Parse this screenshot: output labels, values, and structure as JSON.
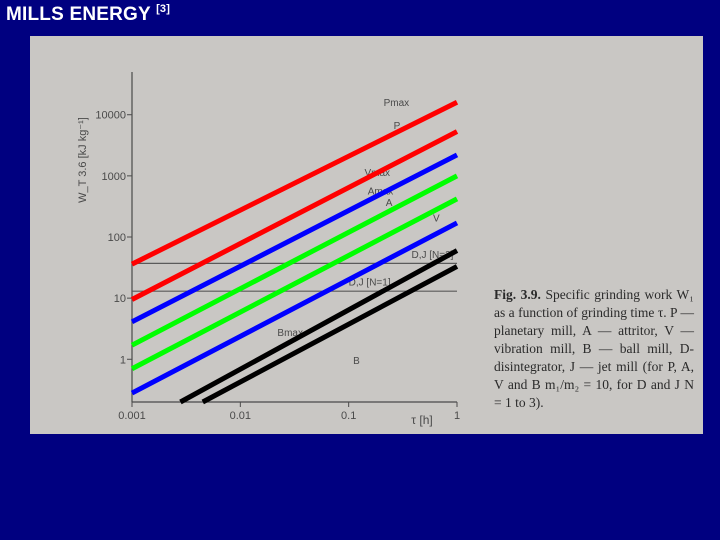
{
  "slide": {
    "title": "MILLS ENERGY",
    "title_ref": "[3]",
    "background": "#000080"
  },
  "figure": {
    "caption_label": "Fig. 3.9.",
    "caption_text": "Specific grinding work W₁ as a function of grinding time τ. P — planetary mill, A — attritor, V — vibration mill, B — ball mill, D-disintegrator, J — jet mill (for P, A, V and B m₁/m₂ = 10, for D and J N = 1 to 3)."
  },
  "chart_data": {
    "type": "line",
    "x_scale": "log",
    "y_scale": "log",
    "xlabel": "τ [h]",
    "ylabel": "W_T 3.6 [kJ kg⁻¹]",
    "xlim": [
      0.001,
      1
    ],
    "ylim": [
      0.2,
      50000
    ],
    "x_ticks": [
      0.001,
      0.01,
      0.1,
      1
    ],
    "x_tick_labels": [
      "0.001",
      "0.01",
      "0.1",
      "1"
    ],
    "y_ticks": [
      1,
      10,
      100,
      1000,
      10000
    ],
    "y_tick_labels": [
      "1",
      "10",
      "100",
      "1000",
      "10000"
    ],
    "grid": false,
    "series": [
      {
        "name": "Pmax",
        "color": "#ff0000",
        "x": [
          0.001,
          1
        ],
        "y": [
          36,
          16000
        ]
      },
      {
        "name": "P",
        "color": "#ff0000",
        "x": [
          0.001,
          1
        ],
        "y": [
          9.5,
          5300
        ]
      },
      {
        "name": "Vmax",
        "color": "#0000ff",
        "x": [
          0.001,
          1
        ],
        "y": [
          4.1,
          2200
        ]
      },
      {
        "name": "Amax",
        "color": "#00ff00",
        "x": [
          0.001,
          1
        ],
        "y": [
          1.7,
          1000
        ]
      },
      {
        "name": "A",
        "color": "#00ff00",
        "x": [
          0.001,
          1
        ],
        "y": [
          0.7,
          420
        ]
      },
      {
        "name": "V",
        "color": "#0000ff",
        "x": [
          0.001,
          1
        ],
        "y": [
          0.28,
          170
        ]
      },
      {
        "name": "Bmax",
        "color": "#000000",
        "x": [
          0.0028,
          1
        ],
        "y": [
          0.2,
          60
        ]
      },
      {
        "name": "B",
        "color": "#000000",
        "x": [
          0.0045,
          1
        ],
        "y": [
          0.2,
          33
        ]
      }
    ],
    "hlines": [
      {
        "name": "D,J [N=3]",
        "y": 37
      },
      {
        "name": "D,J [N=1]",
        "y": 13
      }
    ],
    "labels": [
      {
        "text": "Pmax",
        "x": 0.21,
        "y": 14000
      },
      {
        "text": "P",
        "x": 0.26,
        "y": 5800
      },
      {
        "text": "Vmax",
        "x": 0.14,
        "y": 1000
      },
      {
        "text": "Amax",
        "x": 0.15,
        "y": 500
      },
      {
        "text": "A",
        "x": 0.22,
        "y": 320
      },
      {
        "text": "V",
        "x": 0.6,
        "y": 180
      },
      {
        "text": "D,J [N=3]",
        "x": 0.38,
        "y": 45
      },
      {
        "text": "D,J [N=1]",
        "x": 0.1,
        "y": 16
      },
      {
        "text": "Bmax",
        "x": 0.022,
        "y": 2.4
      },
      {
        "text": "B",
        "x": 0.11,
        "y": 0.83
      }
    ]
  }
}
